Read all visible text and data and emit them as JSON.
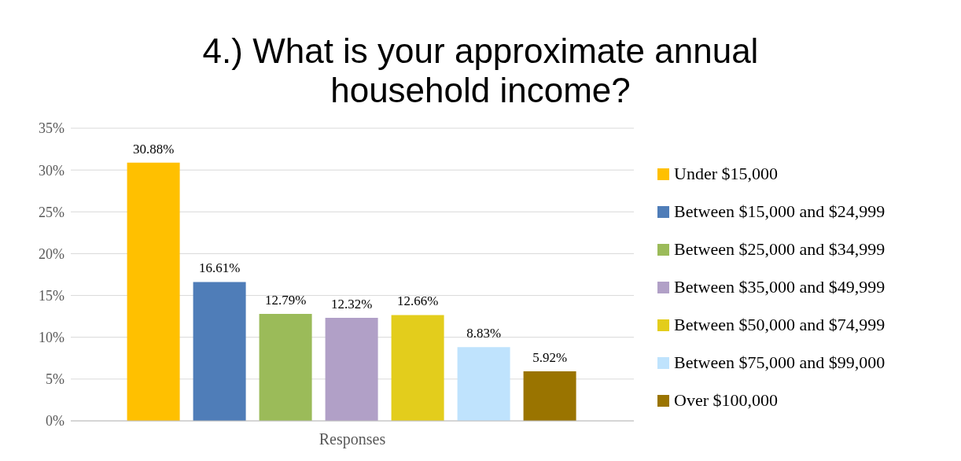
{
  "chart_data": {
    "type": "bar",
    "title": "4.) What is your approximate annual household income?",
    "categories": [
      "Responses"
    ],
    "series": [
      {
        "name": "Under $15,000",
        "color": "#ffc000",
        "values": [
          30.88
        ],
        "value_labels": [
          "30.88%"
        ]
      },
      {
        "name": "Between $15,000 and $24,999",
        "color": "#4f7db8",
        "values": [
          16.61
        ],
        "value_labels": [
          "16.61%"
        ]
      },
      {
        "name": "Between $25,000 and $34,999",
        "color": "#9bbb59",
        "values": [
          12.79
        ],
        "value_labels": [
          "12.79%"
        ]
      },
      {
        "name": "Between $35,000 and $49,999",
        "color": "#b1a0c7",
        "values": [
          12.32
        ],
        "value_labels": [
          "12.32%"
        ]
      },
      {
        "name": "Between $50,000 and $74,999",
        "color": "#e3cd1c",
        "values": [
          12.66
        ],
        "value_labels": [
          "12.66%"
        ]
      },
      {
        "name": "Between $75,000 and $99,000",
        "color": "#bfe3fd",
        "values": [
          8.83
        ],
        "value_labels": [
          "8.83%"
        ]
      },
      {
        "name": "Over $100,000",
        "color": "#9a7400",
        "values": [
          5.92
        ],
        "value_labels": [
          "5.92%"
        ]
      }
    ],
    "ylim": [
      0,
      35
    ],
    "yticks": [
      {
        "value": 0,
        "label": "0%"
      },
      {
        "value": 5,
        "label": "5%"
      },
      {
        "value": 10,
        "label": "10%"
      },
      {
        "value": 15,
        "label": "15%"
      },
      {
        "value": 20,
        "label": "20%"
      },
      {
        "value": 25,
        "label": "25%"
      },
      {
        "value": 30,
        "label": "30%"
      },
      {
        "value": 35,
        "label": "35%"
      }
    ],
    "grid": "y",
    "legend": "right"
  }
}
